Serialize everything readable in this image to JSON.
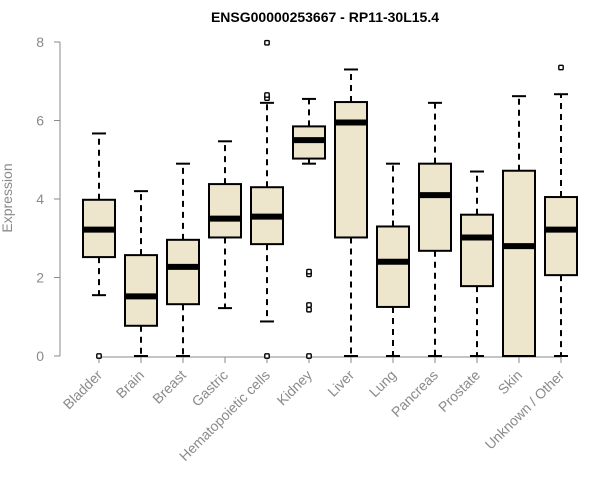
{
  "chart_data": {
    "type": "boxplot",
    "title": "ENSG00000253667 - RP11-30L15.4",
    "xlabel": "",
    "ylabel": "Expression",
    "ylim": [
      0,
      8
    ],
    "yticks": [
      0,
      2,
      4,
      6,
      8
    ],
    "box_fill": "#ede6cd",
    "stroke": "#000000",
    "axis_color": "#8a8a8a",
    "categories": [
      "Bladder",
      "Brain",
      "Breast",
      "Gastric",
      "Hematopoietic cells",
      "Kidney",
      "Liver",
      "Lung",
      "Pancreas",
      "Prostate",
      "Skin",
      "Unknown / Other"
    ],
    "boxes": [
      {
        "label": "Bladder",
        "whisker_low": 1.55,
        "q1": 2.52,
        "median": 3.22,
        "q3": 3.98,
        "whisker_high": 5.67,
        "outliers": [
          0.0
        ]
      },
      {
        "label": "Brain",
        "whisker_low": 0.0,
        "q1": 0.77,
        "median": 1.52,
        "q3": 2.57,
        "whisker_high": 4.2,
        "outliers": []
      },
      {
        "label": "Breast",
        "whisker_low": 0.0,
        "q1": 1.32,
        "median": 2.27,
        "q3": 2.96,
        "whisker_high": 4.9,
        "outliers": []
      },
      {
        "label": "Gastric",
        "whisker_low": 1.22,
        "q1": 3.02,
        "median": 3.5,
        "q3": 4.38,
        "whisker_high": 5.47,
        "outliers": []
      },
      {
        "label": "Hematopoietic cells",
        "whisker_low": 0.88,
        "q1": 2.85,
        "median": 3.55,
        "q3": 4.3,
        "whisker_high": 6.45,
        "outliers": [
          0.0,
          6.57,
          6.65,
          7.98
        ]
      },
      {
        "label": "Kidney",
        "whisker_low": 4.9,
        "q1": 5.03,
        "median": 5.5,
        "q3": 5.85,
        "whisker_high": 6.55,
        "outliers": [
          0.0,
          1.18,
          1.3,
          2.08,
          2.15
        ]
      },
      {
        "label": "Liver",
        "whisker_low": 0.0,
        "q1": 3.02,
        "median": 5.95,
        "q3": 6.47,
        "whisker_high": 7.3,
        "outliers": []
      },
      {
        "label": "Lung",
        "whisker_low": 0.0,
        "q1": 1.25,
        "median": 2.4,
        "q3": 3.3,
        "whisker_high": 4.9,
        "outliers": []
      },
      {
        "label": "Pancreas",
        "whisker_low": 0.0,
        "q1": 2.68,
        "median": 4.1,
        "q3": 4.9,
        "whisker_high": 6.45,
        "outliers": []
      },
      {
        "label": "Prostate",
        "whisker_low": 0.0,
        "q1": 1.78,
        "median": 3.02,
        "q3": 3.6,
        "whisker_high": 4.7,
        "outliers": []
      },
      {
        "label": "Skin",
        "whisker_low": 0.0,
        "q1": 0.0,
        "median": 2.8,
        "q3": 4.72,
        "whisker_high": 6.62,
        "outliers": []
      },
      {
        "label": "Unknown / Other",
        "whisker_low": 0.0,
        "q1": 2.06,
        "median": 3.22,
        "q3": 4.05,
        "whisker_high": 6.67,
        "outliers": [
          7.35
        ]
      }
    ]
  }
}
